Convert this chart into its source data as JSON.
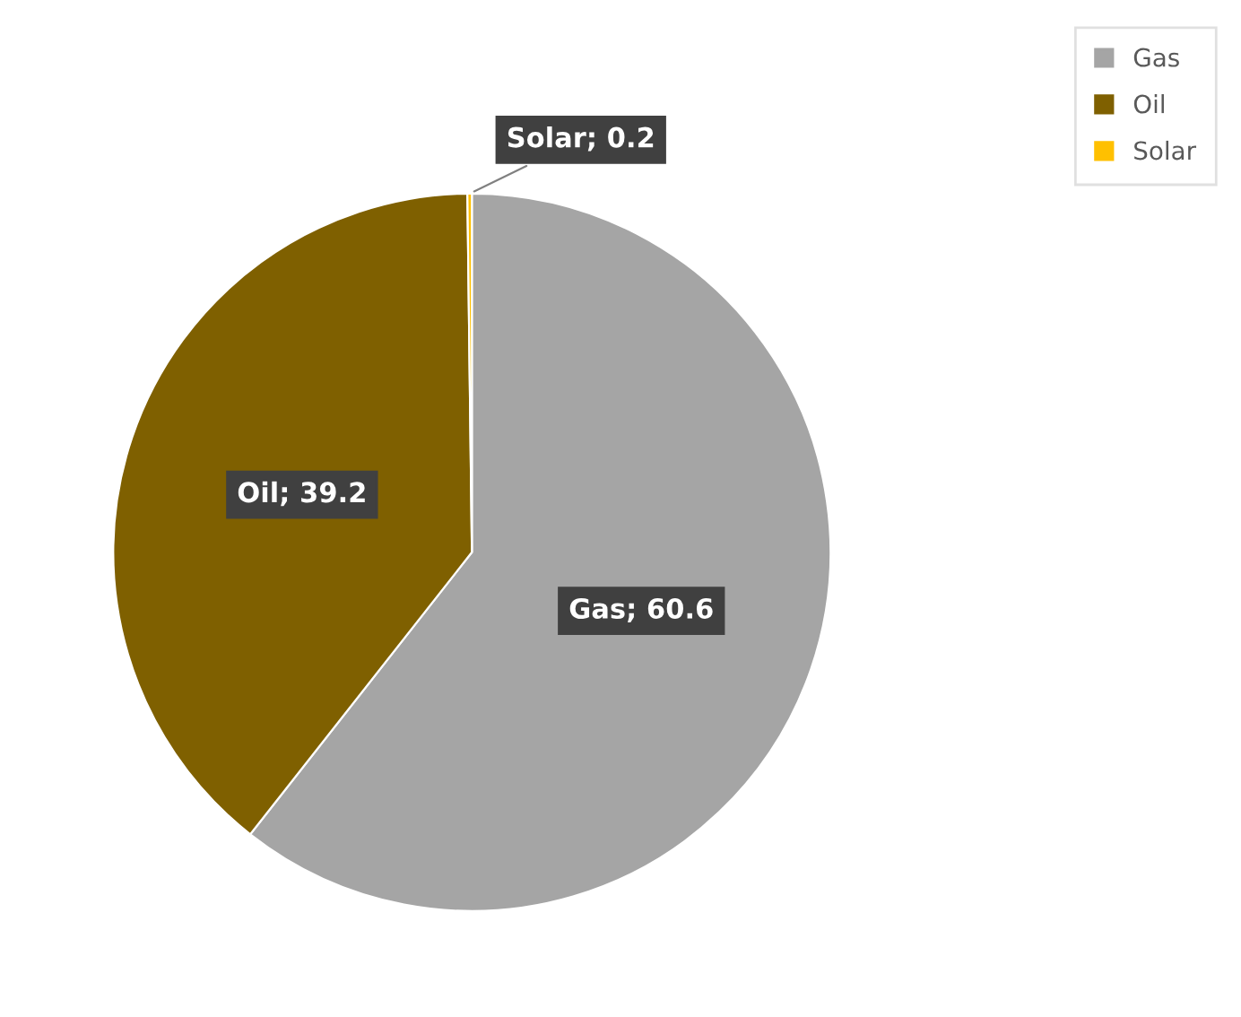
{
  "chart_data": {
    "type": "pie",
    "categories": [
      "Gas",
      "Oil",
      "Solar"
    ],
    "values": [
      60.6,
      39.2,
      0.2
    ],
    "colors": [
      "#a5a5a5",
      "#7f6000",
      "#ffc000"
    ],
    "value_labels": [
      "Gas; 60.6",
      "Oil; 39.2",
      "Solar; 0.2"
    ],
    "legend": "top right"
  }
}
